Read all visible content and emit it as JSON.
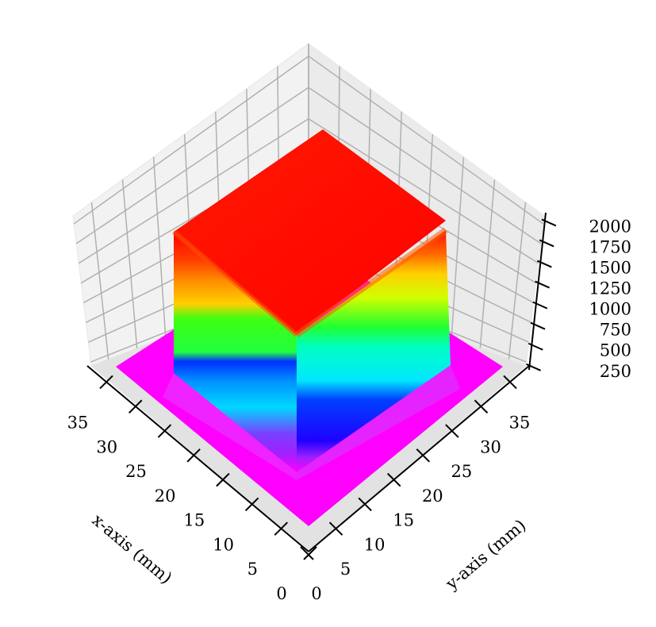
{
  "chart_data": {
    "type": "surface",
    "xlabel": "x-axis (mm)",
    "ylabel": "y-axis (mm)",
    "zlabel": "",
    "x_ticks": [
      "0",
      "5",
      "10",
      "15",
      "20",
      "25",
      "30",
      "35"
    ],
    "y_ticks": [
      "0",
      "5",
      "10",
      "15",
      "20",
      "25",
      "30",
      "35"
    ],
    "z_ticks": [
      "250",
      "500",
      "750",
      "1000",
      "1250",
      "1500",
      "1750",
      "2000"
    ],
    "xlim": [
      0,
      38
    ],
    "ylim": [
      0,
      38
    ],
    "zlim": [
      200,
      2100
    ],
    "grid": true,
    "colormap": "gist_rainbow (reversed)",
    "surface": {
      "base_height": 250,
      "plateau_height": 2000,
      "plateau_x_range": [
        7,
        31
      ],
      "plateau_y_range": [
        7,
        31
      ]
    },
    "colors": {
      "base": "#ff00ff",
      "violet": "#8000ff",
      "blue": "#0000ff",
      "cyan": "#00e0ff",
      "green": "#00ff20",
      "yellow": "#ffee00",
      "orange": "#ff7a00",
      "top": "#ff0000"
    }
  }
}
